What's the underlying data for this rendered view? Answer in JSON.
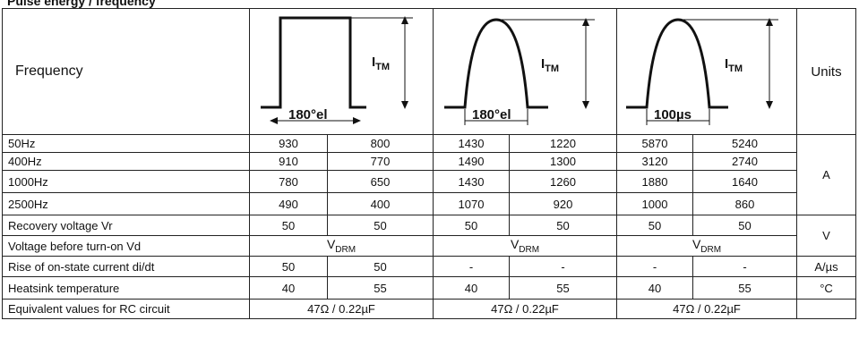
{
  "title": "Pulse energy / frequency",
  "header": {
    "frequency_label": "Frequency",
    "units_label": "Units",
    "pulse1": {
      "width_label": "180°el",
      "current_label": "I",
      "current_sub": "TM"
    },
    "pulse2": {
      "width_label": "180°el",
      "current_label": "I",
      "current_sub": "TM"
    },
    "pulse3": {
      "width_label": "100µs",
      "current_label": "I",
      "current_sub": "TM"
    }
  },
  "freq_rows": [
    {
      "label": "50Hz",
      "values": [
        "930",
        "800",
        "1430",
        "1220",
        "5870",
        "5240"
      ]
    },
    {
      "label": "400Hz",
      "values": [
        "910",
        "770",
        "1490",
        "1300",
        "3120",
        "2740"
      ]
    },
    {
      "label": "1000Hz",
      "values": [
        "780",
        "650",
        "1430",
        "1260",
        "1880",
        "1640"
      ]
    },
    {
      "label": "2500Hz",
      "values": [
        "490",
        "400",
        "1070",
        "920",
        "1000",
        "860"
      ]
    }
  ],
  "freq_unit": "A",
  "recovery": {
    "label": "Recovery voltage Vr",
    "values": [
      "50",
      "50",
      "50",
      "50",
      "50",
      "50"
    ]
  },
  "voltage_before": {
    "label": "Voltage before turn-on Vd",
    "value_main": "V",
    "value_sub": "DRM"
  },
  "voltage_unit": "V",
  "rise": {
    "label": "Rise of on-state current di/dt",
    "values": [
      "50",
      "50",
      "-",
      "-",
      "-",
      "-"
    ],
    "unit": "A/µs"
  },
  "heatsink": {
    "label": "Heatsink temperature",
    "values": [
      "40",
      "55",
      "40",
      "55",
      "40",
      "55"
    ],
    "unit": "°C"
  },
  "rc": {
    "label": "Equivalent values for RC circuit",
    "values": [
      "47Ω / 0.22µF",
      "47Ω / 0.22µF",
      "47Ω / 0.22µF"
    ],
    "unit": ""
  }
}
